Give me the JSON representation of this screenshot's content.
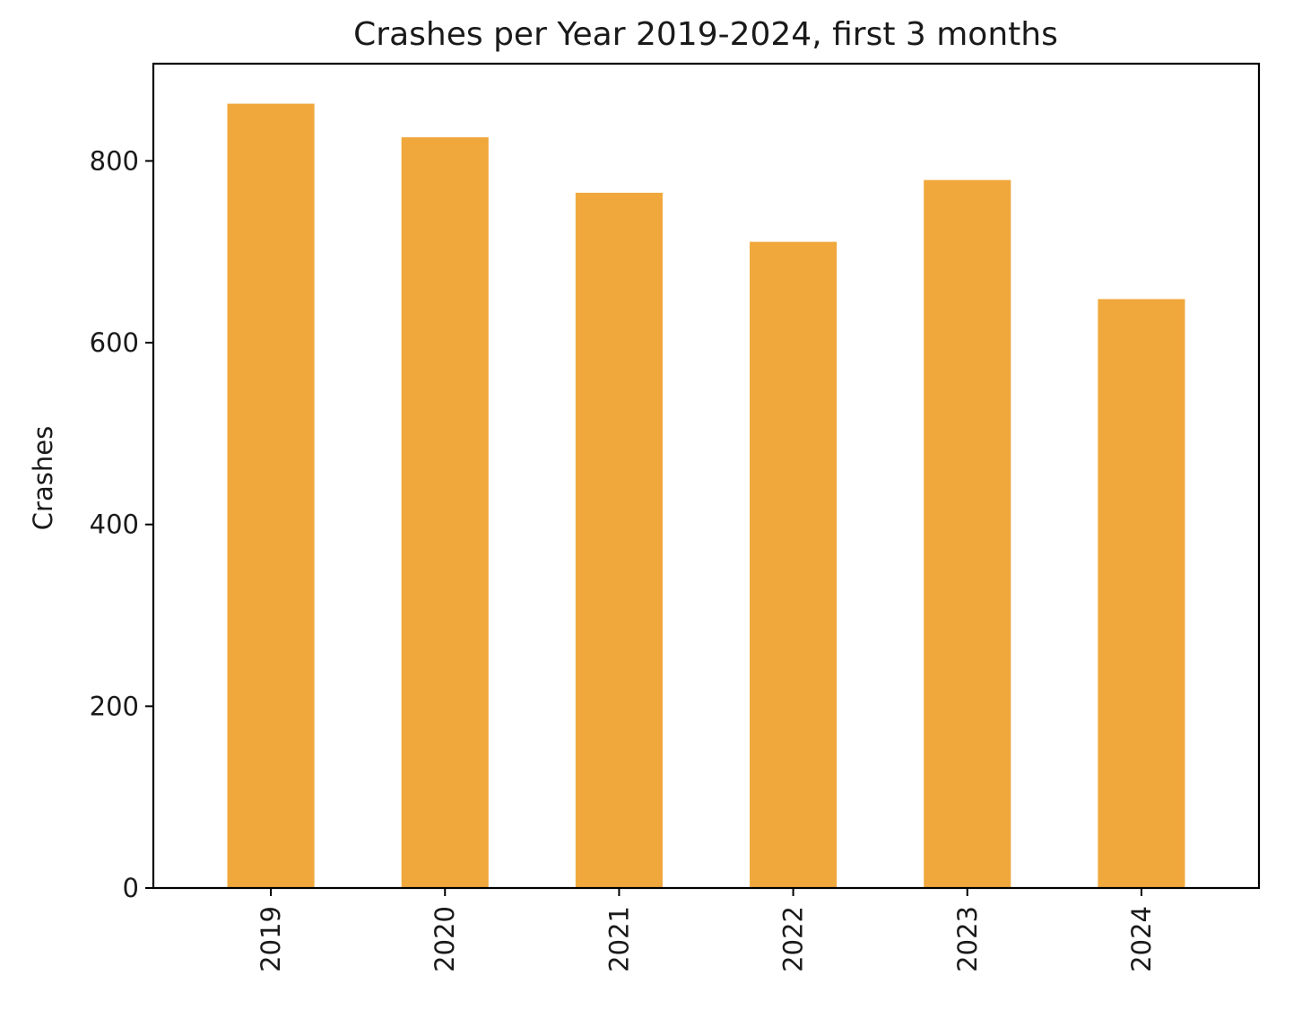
{
  "chart_data": {
    "type": "bar",
    "title": "Crashes per Year 2019-2024, first 3 months",
    "xlabel": "",
    "ylabel": "Crashes",
    "categories": [
      "2019",
      "2020",
      "2021",
      "2022",
      "2023",
      "2024"
    ],
    "values": [
      863,
      826,
      765,
      711,
      779,
      648
    ],
    "ylim": [
      0,
      907
    ],
    "yticks": [
      0,
      200,
      400,
      600,
      800
    ],
    "bar_color": "#f0a83c",
    "grid": false,
    "legend": "none"
  }
}
